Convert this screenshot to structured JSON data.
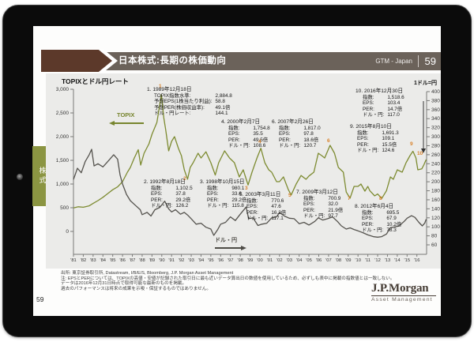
{
  "slide": {
    "header": {
      "title": "日本株式:長期の株価動向",
      "program": "GTM - Japan",
      "page": "59"
    },
    "side_tab": {
      "label": "株式"
    },
    "page_number": "59",
    "footnotes": [
      "出所: 東京証券取引所, Datastream, I/B/E/S, Bloomberg, J.P. Morgan Asset Management",
      "注: EPSとPERについては、TOPIXの高値・安値が記録された取引日に最も近いデータ算出日の数値を使用しているため、必ずしも表中に掲載の指数値とは一致しない。",
      "データは2016年12月31日時点で取得可能な最新のものを掲載。",
      "過去のパフォーマンスは将来の成果を示唆・保証するものではありません。"
    ],
    "logo": {
      "brand": "J.P.Morgan",
      "sub": "Asset Management"
    }
  },
  "chart_data": {
    "type": "line",
    "title": "TOPIXとドル円レート",
    "right_axis_title": "1ドル=円",
    "legend": {
      "topix_label": "TOPIX",
      "usdjpy_label": "ドル・円"
    },
    "left_axis": {
      "min": 0,
      "max": 3000,
      "ticks": [
        "3,000",
        "2,500",
        "2,000",
        "1,500",
        "1,000",
        "500",
        "0"
      ]
    },
    "right_axis": {
      "min": 60,
      "max": 400,
      "ticks": [
        "400",
        "380",
        "360",
        "340",
        "320",
        "300",
        "280",
        "260",
        "240",
        "220",
        "200",
        "180",
        "160",
        "140",
        "120",
        "100",
        "80",
        "60"
      ]
    },
    "x_ticks": [
      "'81",
      "'82",
      "'83",
      "'84",
      "'85",
      "'86",
      "'87",
      "'88",
      "'89",
      "'90",
      "'91",
      "'92",
      "'93",
      "'94",
      "'95",
      "'96",
      "'97",
      "'98",
      "'99",
      "'00",
      "'01",
      "'02",
      "'03",
      "'04",
      "'05",
      "'06",
      "'07",
      "'08",
      "'09",
      "'10",
      "'11",
      "'12",
      "'13",
      "'14",
      "'15",
      "'16"
    ],
    "series": [
      {
        "name": "TOPIX",
        "axis": "left",
        "color": "#7d8b31",
        "points": [
          [
            1981.0,
            495
          ],
          [
            1981.5,
            520
          ],
          [
            1982.0,
            510
          ],
          [
            1982.6,
            540
          ],
          [
            1983.0,
            590
          ],
          [
            1983.5,
            650
          ],
          [
            1984.0,
            720
          ],
          [
            1984.5,
            800
          ],
          [
            1985.0,
            880
          ],
          [
            1985.5,
            940
          ],
          [
            1986.0,
            1050
          ],
          [
            1986.5,
            1250
          ],
          [
            1986.8,
            1350
          ],
          [
            1987.2,
            1550
          ],
          [
            1987.6,
            1725
          ],
          [
            1987.85,
            1400
          ],
          [
            1988.2,
            1650
          ],
          [
            1988.7,
            1850
          ],
          [
            1989.0,
            2050
          ],
          [
            1989.5,
            2300
          ],
          [
            1989.96,
            2884.8
          ],
          [
            1990.2,
            2400
          ],
          [
            1990.4,
            2150
          ],
          [
            1990.7,
            1700
          ],
          [
            1991.0,
            1900
          ],
          [
            1991.3,
            2000
          ],
          [
            1991.7,
            1750
          ],
          [
            1992.0,
            1600
          ],
          [
            1992.3,
            1300
          ],
          [
            1992.63,
            1102.5
          ],
          [
            1992.9,
            1350
          ],
          [
            1993.2,
            1450
          ],
          [
            1993.7,
            1650
          ],
          [
            1994.0,
            1550
          ],
          [
            1994.5,
            1680
          ],
          [
            1995.0,
            1450
          ],
          [
            1995.45,
            1190
          ],
          [
            1995.8,
            1450
          ],
          [
            1996.4,
            1700
          ],
          [
            1996.9,
            1550
          ],
          [
            1997.4,
            1450
          ],
          [
            1997.9,
            1150
          ],
          [
            1998.3,
            1300
          ],
          [
            1998.79,
            980.1
          ],
          [
            1999.2,
            1250
          ],
          [
            1999.7,
            1550
          ],
          [
            2000.1,
            1754.8
          ],
          [
            2000.5,
            1450
          ],
          [
            2000.9,
            1300
          ],
          [
            2001.2,
            1250
          ],
          [
            2001.7,
            1050
          ],
          [
            2002.0,
            1050
          ],
          [
            2002.4,
            1150
          ],
          [
            2002.9,
            880
          ],
          [
            2003.19,
            770.6
          ],
          [
            2003.7,
            1000
          ],
          [
            2004.2,
            1180
          ],
          [
            2004.7,
            1100
          ],
          [
            2005.0,
            1170
          ],
          [
            2005.5,
            1250
          ],
          [
            2005.95,
            1650
          ],
          [
            2006.3,
            1600
          ],
          [
            2006.6,
            1550
          ],
          [
            2007.15,
            1817.0
          ],
          [
            2007.6,
            1650
          ],
          [
            2008.0,
            1350
          ],
          [
            2008.5,
            1250
          ],
          [
            2008.8,
            830
          ],
          [
            2009.19,
            700.9
          ],
          [
            2009.6,
            950
          ],
          [
            2010.0,
            950
          ],
          [
            2010.3,
            1000
          ],
          [
            2010.7,
            850
          ],
          [
            2011.0,
            950
          ],
          [
            2011.2,
            860
          ],
          [
            2011.7,
            750
          ],
          [
            2012.0,
            790
          ],
          [
            2012.42,
            695.5
          ],
          [
            2012.9,
            860
          ],
          [
            2013.3,
            1150
          ],
          [
            2013.6,
            1100
          ],
          [
            2014.0,
            1300
          ],
          [
            2014.5,
            1250
          ],
          [
            2014.9,
            1450
          ],
          [
            2015.3,
            1600
          ],
          [
            2015.6,
            1691.3
          ],
          [
            2015.9,
            1550
          ],
          [
            2016.1,
            1300
          ],
          [
            2016.5,
            1320
          ],
          [
            2016.7,
            1400
          ],
          [
            2016.95,
            1518.6
          ]
        ]
      },
      {
        "name": "ドル・円",
        "axis": "right",
        "color": "#55534e",
        "points": [
          [
            1981.0,
            205
          ],
          [
            1981.4,
            230
          ],
          [
            1981.8,
            220
          ],
          [
            1982.2,
            245
          ],
          [
            1982.6,
            260
          ],
          [
            1982.85,
            272
          ],
          [
            1983.1,
            235
          ],
          [
            1983.5,
            240
          ],
          [
            1984.0,
            233
          ],
          [
            1984.5,
            245
          ],
          [
            1985.1,
            260
          ],
          [
            1985.5,
            250
          ],
          [
            1985.75,
            215
          ],
          [
            1986.0,
            195
          ],
          [
            1986.4,
            172
          ],
          [
            1986.8,
            158
          ],
          [
            1987.3,
            148
          ],
          [
            1987.8,
            138
          ],
          [
            1988.0,
            127
          ],
          [
            1988.5,
            132
          ],
          [
            1988.9,
            124
          ],
          [
            1989.3,
            138
          ],
          [
            1989.8,
            143
          ],
          [
            1990.3,
            157
          ],
          [
            1990.7,
            140
          ],
          [
            1991.0,
            133
          ],
          [
            1991.4,
            138
          ],
          [
            1991.9,
            128
          ],
          [
            1992.3,
            132
          ],
          [
            1992.63,
            126.2
          ],
          [
            1993.0,
            118
          ],
          [
            1993.5,
            106
          ],
          [
            1994.0,
            108
          ],
          [
            1994.5,
            99
          ],
          [
            1995.0,
            95
          ],
          [
            1995.3,
            81
          ],
          [
            1995.7,
            94
          ],
          [
            1996.0,
            106
          ],
          [
            1996.5,
            110
          ],
          [
            1997.0,
            122
          ],
          [
            1997.5,
            114
          ],
          [
            1998.0,
            128
          ],
          [
            1998.6,
            144
          ],
          [
            1998.85,
            118
          ],
          [
            1999.3,
            120
          ],
          [
            1999.8,
            103
          ],
          [
            2000.2,
            106
          ],
          [
            2000.7,
            108
          ],
          [
            2001.2,
            120
          ],
          [
            2001.7,
            122
          ],
          [
            2002.0,
            132
          ],
          [
            2002.5,
            124
          ],
          [
            2003.0,
            119
          ],
          [
            2003.5,
            118
          ],
          [
            2004.0,
            107
          ],
          [
            2004.5,
            110
          ],
          [
            2005.0,
            104
          ],
          [
            2005.6,
            112
          ],
          [
            2005.95,
            120
          ],
          [
            2006.4,
            115
          ],
          [
            2006.9,
            118
          ],
          [
            2007.4,
            122
          ],
          [
            2007.9,
            112
          ],
          [
            2008.3,
            102
          ],
          [
            2008.8,
            95
          ],
          [
            2009.2,
            97.7
          ],
          [
            2009.6,
            94
          ],
          [
            2010.0,
            91
          ],
          [
            2010.5,
            87
          ],
          [
            2011.0,
            82
          ],
          [
            2011.6,
            78
          ],
          [
            2012.0,
            77
          ],
          [
            2012.42,
            78.3
          ],
          [
            2012.9,
            84
          ],
          [
            2013.3,
            98
          ],
          [
            2013.8,
            100
          ],
          [
            2014.2,
            102
          ],
          [
            2014.7,
            112
          ],
          [
            2015.0,
            119
          ],
          [
            2015.45,
            124.6
          ],
          [
            2015.8,
            121
          ],
          [
            2016.2,
            110
          ],
          [
            2016.55,
            102
          ],
          [
            2016.8,
            108
          ],
          [
            2016.95,
            117.0
          ]
        ]
      }
    ],
    "annotations": [
      {
        "num": "1",
        "title": "1. 1989年12月18日",
        "rows": [
          [
            "TOPIX指数水準:",
            "2,884.8"
          ],
          [
            "予想EPS(1株当たり利益):",
            "58.8"
          ],
          [
            "予想PER(株価収益率):",
            "49.1倍"
          ],
          [
            "ドル・円レート:",
            "144.1"
          ]
        ]
      },
      {
        "num": "2",
        "title": "2. 1992年8月18日",
        "rows": [
          [
            "指数:",
            "1,102.5"
          ],
          [
            "EPS:",
            "37.8"
          ],
          [
            "PER:",
            "29.2倍"
          ],
          [
            "ドル・円:",
            "126.2"
          ]
        ]
      },
      {
        "num": "3",
        "title": "3. 1998年10月15日",
        "rows": [
          [
            "指数:",
            "980.1"
          ],
          [
            "EPS:",
            "33.6"
          ],
          [
            "PER:",
            "29.2倍"
          ],
          [
            "ドル・円:",
            "115.8"
          ]
        ]
      },
      {
        "num": "4",
        "title": "4. 2000年2月7日",
        "rows": [
          [
            "指数:",
            "1,754.8"
          ],
          [
            "EPS:",
            "35.5"
          ],
          [
            "PER:",
            "49.5倍"
          ],
          [
            "ドル・円:",
            "108.6"
          ]
        ]
      },
      {
        "num": "5",
        "title": "5. 2003年3月11日",
        "rows": [
          [
            "指数:",
            "770.6"
          ],
          [
            "EPS:",
            "47.6"
          ],
          [
            "PER:",
            "16.2倍"
          ],
          [
            "ドル・円:",
            "117.1"
          ]
        ]
      },
      {
        "num": "6",
        "title": "6. 2007年2月26日",
        "rows": [
          [
            "指数:",
            "1,817.0"
          ],
          [
            "EPS:",
            "97.8"
          ],
          [
            "PER:",
            "18.6倍"
          ],
          [
            "ドル・円:",
            "120.7"
          ]
        ]
      },
      {
        "num": "7",
        "title": "7. 2009年3月12日",
        "rows": [
          [
            "指数:",
            "700.9"
          ],
          [
            "EPS:",
            "32.0"
          ],
          [
            "PER:",
            "21.9倍"
          ],
          [
            "ドル・円:",
            "97.7"
          ]
        ]
      },
      {
        "num": "8",
        "title": "8. 2012年6月4日",
        "rows": [
          [
            "指数:",
            "695.5"
          ],
          [
            "EPS:",
            "67.9"
          ],
          [
            "PER:",
            "10.2倍"
          ],
          [
            "ドル・円:",
            "78.3"
          ]
        ]
      },
      {
        "num": "9",
        "title": "9. 2015年8月10日",
        "rows": [
          [
            "指数:",
            "1,691.3"
          ],
          [
            "EPS:",
            "109.1"
          ],
          [
            "PER:",
            "15.5倍"
          ],
          [
            "ドル・円:",
            "124.6"
          ]
        ]
      },
      {
        "num": "10",
        "title": "10. 2016年12月30日",
        "rows": [
          [
            "指数:",
            "1,518.6"
          ],
          [
            "EPS:",
            "103.4"
          ],
          [
            "PER:",
            "14.7倍"
          ],
          [
            "ドル・円:",
            "117.0"
          ]
        ]
      }
    ]
  }
}
